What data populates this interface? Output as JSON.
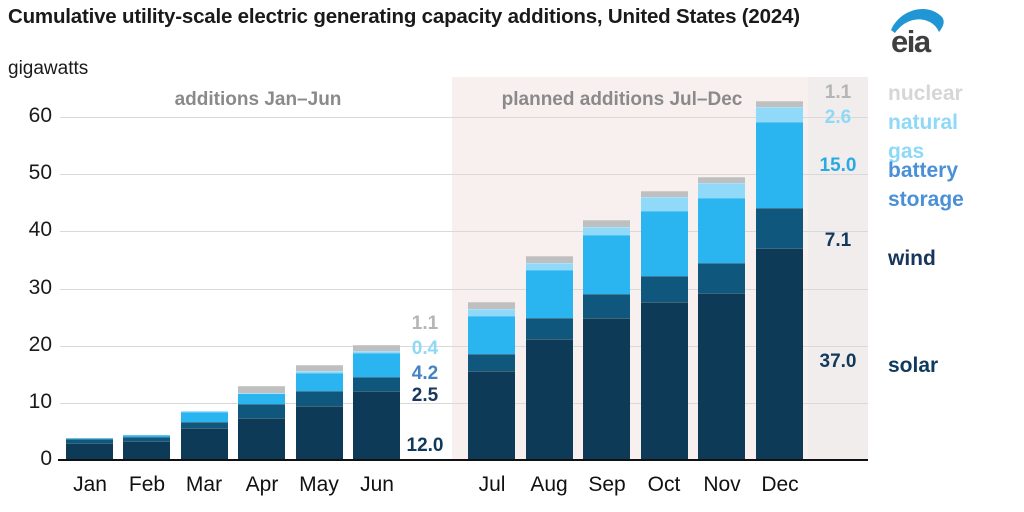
{
  "header": {
    "title": "Cumulative utility-scale electric generating capacity additions, United States (2024)",
    "subtitle": "gigawatts",
    "logo_text": "eia"
  },
  "sections": {
    "left_label": "additions Jan–Jun",
    "right_label": "planned additions Jul–Dec"
  },
  "colors": {
    "solar": "#0c3a57",
    "wind": "#0f577c",
    "battery_storage": "#2bb5f0",
    "natural_gas": "#90d9f8",
    "nuclear": "#bfbfbf",
    "planned_background": "#f7f0ef",
    "label_strip_background": "#f0edec",
    "gridline": "#d9d9d9",
    "axis": "#111111",
    "section_label": "#8a8a8a",
    "logo_blue": "#2196d4",
    "logo_text_color": "#3f3f3f"
  },
  "legend": [
    {
      "key": "nuclear",
      "label": "nuclear",
      "color": "#d6d6d6"
    },
    {
      "key": "natural-gas",
      "label": "natural gas",
      "color": "#8ed8f8"
    },
    {
      "key": "battery-storage",
      "label": "battery storage",
      "color": "#4a90d9"
    },
    {
      "key": "wind",
      "label": "wind",
      "color": "#16365c"
    },
    {
      "key": "solar",
      "label": "solar",
      "color": "#0f3a5c"
    }
  ],
  "annotations": {
    "jun_column": [
      {
        "name": "solar",
        "text": "12.0",
        "color": "#0f3a5c"
      },
      {
        "name": "wind",
        "text": "2.5",
        "color": "#17375e"
      },
      {
        "name": "battery-storage",
        "text": "4.2",
        "color": "#4583c6"
      },
      {
        "name": "natural-gas",
        "text": "0.4",
        "color": "#8ed8f8"
      },
      {
        "name": "nuclear",
        "text": "1.1",
        "color": "#b5b5b5"
      }
    ],
    "dec_column": [
      {
        "name": "solar",
        "text": "37.0",
        "color": "#12385c"
      },
      {
        "name": "wind",
        "text": "7.1",
        "color": "#12385c"
      },
      {
        "name": "battery-storage",
        "text": "15.0",
        "color": "#29aae5"
      },
      {
        "name": "natural-gas",
        "text": "2.6",
        "color": "#8ed8f8"
      },
      {
        "name": "nuclear",
        "text": "1.1",
        "color": "#b5b5b5"
      }
    ]
  },
  "chart_data": {
    "type": "bar",
    "stacked": true,
    "title": "Cumulative utility-scale electric generating capacity additions, United States (2024)",
    "ylabel": "gigawatts",
    "xlabel": "",
    "ylim": [
      0,
      63
    ],
    "yticks": [
      0,
      10,
      20,
      30,
      40,
      50,
      60
    ],
    "grid": true,
    "legend_position": "right",
    "section_labels": [
      "additions Jan–Jun",
      "planned additions Jul–Dec"
    ],
    "categories": [
      "Jan",
      "Feb",
      "Mar",
      "Apr",
      "May",
      "Jun",
      "Jul",
      "Aug",
      "Sep",
      "Oct",
      "Nov",
      "Dec"
    ],
    "series": [
      {
        "key": "solar",
        "name": "solar",
        "color": "#0c3a57",
        "values": [
          3.0,
          3.3,
          5.6,
          7.3,
          9.5,
          12.0,
          15.5,
          21.1,
          24.8,
          27.6,
          29.3,
          37.0
        ]
      },
      {
        "key": "wind",
        "name": "wind",
        "color": "#0f577c",
        "values": [
          0.7,
          0.8,
          1.0,
          2.5,
          2.5,
          2.5,
          3.0,
          3.8,
          4.2,
          4.6,
          5.1,
          7.1
        ]
      },
      {
        "key": "battery-storage",
        "name": "battery storage",
        "color": "#2bb5f0",
        "values": [
          0.2,
          0.3,
          1.8,
          1.9,
          3.2,
          4.2,
          6.7,
          8.3,
          10.4,
          11.3,
          11.4,
          15.0
        ]
      },
      {
        "key": "natural-gas",
        "name": "natural gas",
        "color": "#90d9f8",
        "values": [
          0.0,
          0.0,
          0.1,
          0.1,
          0.3,
          0.4,
          1.3,
          1.3,
          1.4,
          2.5,
          2.6,
          2.6
        ]
      },
      {
        "key": "nuclear",
        "name": "nuclear",
        "color": "#bfbfbf",
        "values": [
          0.0,
          0.0,
          0.0,
          1.1,
          1.1,
          1.1,
          1.1,
          1.1,
          1.1,
          1.1,
          1.1,
          1.1
        ]
      }
    ],
    "labeled_values": {
      "Jun": {
        "solar": 12.0,
        "wind": 2.5,
        "battery storage": 4.2,
        "natural gas": 0.4,
        "nuclear": 1.1
      },
      "Dec": {
        "solar": 37.0,
        "wind": 7.1,
        "battery storage": 15.0,
        "natural gas": 2.6,
        "nuclear": 1.1
      }
    }
  }
}
